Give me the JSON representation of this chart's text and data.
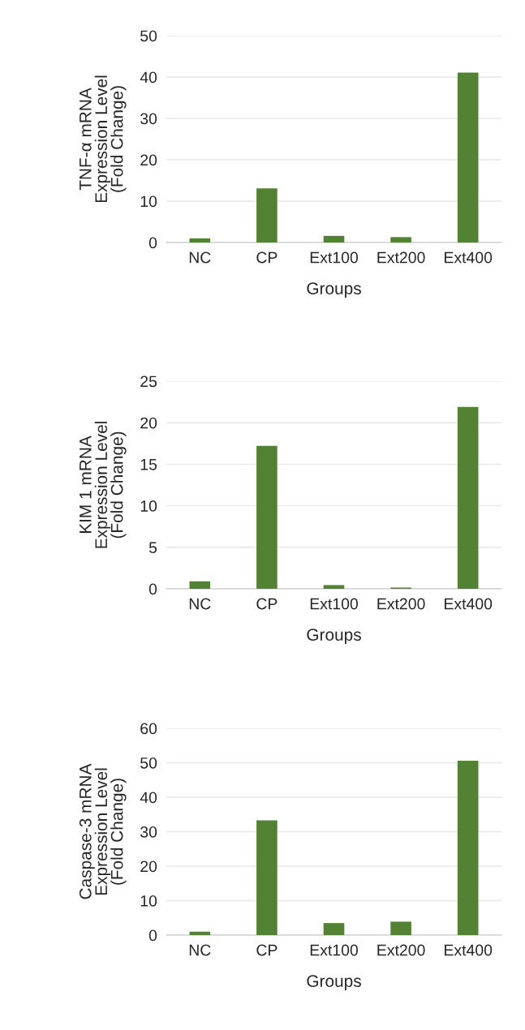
{
  "chart_data": [
    {
      "type": "bar",
      "categories": [
        "NC",
        "CP",
        "Ext100",
        "Ext200",
        "Ext400"
      ],
      "values": [
        1.0,
        13.1,
        1.6,
        1.3,
        41.1
      ],
      "color": "#548235",
      "xlabel": "Groups",
      "ylabel": "TNF-α mRNA\nExpression Level\n(Fold Change)",
      "ylim": [
        0,
        50
      ],
      "yticks": [
        0,
        10,
        20,
        30,
        40,
        50
      ],
      "grid": "y"
    },
    {
      "type": "bar",
      "categories": [
        "NC",
        "CP",
        "Ext100",
        "Ext200",
        "Ext400"
      ],
      "values": [
        0.9,
        17.2,
        0.45,
        0.15,
        21.9
      ],
      "color": "#548235",
      "xlabel": "Groups",
      "ylabel": "KIM 1 mRNA\nExpression Level\n(Fold Change)",
      "ylim": [
        0,
        25
      ],
      "yticks": [
        0,
        5,
        10,
        15,
        20,
        25
      ],
      "grid": "y"
    },
    {
      "type": "bar",
      "categories": [
        "NC",
        "CP",
        "Ext100",
        "Ext200",
        "Ext400"
      ],
      "values": [
        1.0,
        33.3,
        3.5,
        3.9,
        50.6
      ],
      "color": "#548235",
      "xlabel": "Groups",
      "ylabel": "Caspase-3 mRNA\nExpression Level\n(Fold Change)",
      "ylim": [
        0,
        60
      ],
      "yticks": [
        0,
        10,
        20,
        30,
        40,
        50,
        60
      ],
      "grid": "y"
    }
  ]
}
